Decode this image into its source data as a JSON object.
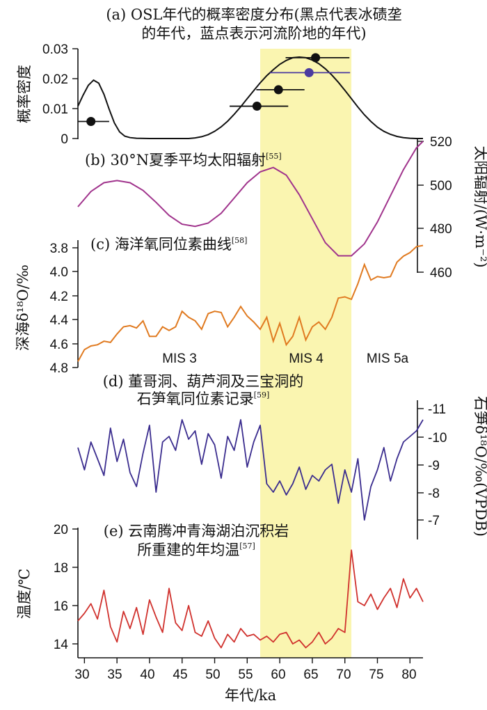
{
  "colors": {
    "highlight": "#FAF5B0",
    "density_curve": "#111111",
    "moraine_point": "#111111",
    "terrace_point": "#4B3BA0",
    "insolation": "#A0338C",
    "ocean": "#E07A20",
    "stalagmite": "#3A2C8E",
    "temperature": "#D0312D"
  },
  "chart_data": [
    {
      "id": "a",
      "type": "line",
      "title": "(a) OSL年代的概率密度分布(黑点代表冰碛垄",
      "title_line2": "的年代，蓝点表示河流阶地的年代)",
      "ylabel": "概率密度",
      "ylim": [
        0,
        0.03
      ],
      "yticks": [
        "0.03",
        "0.02",
        "0.01",
        "0"
      ],
      "xlim": [
        29,
        82
      ],
      "curve": {
        "x": [
          29,
          29.8,
          30.6,
          31.4,
          32.2,
          33,
          33.8,
          34.6,
          35.4,
          36.2,
          37,
          38,
          40,
          42,
          44,
          46,
          47,
          48,
          49,
          50,
          51,
          52,
          53,
          54,
          55,
          56,
          57,
          58,
          59,
          60,
          61,
          62,
          63,
          64,
          65,
          66,
          67,
          68,
          69,
          70,
          71,
          72,
          73,
          74,
          75,
          76,
          77,
          78,
          79,
          80,
          81,
          82
        ],
        "y": [
          0.0108,
          0.0145,
          0.0178,
          0.0195,
          0.0185,
          0.0148,
          0.0098,
          0.0052,
          0.0022,
          0.0008,
          0.0003,
          0.0001,
          0,
          0,
          0,
          0,
          0.0002,
          0.0006,
          0.0013,
          0.0024,
          0.0039,
          0.0058,
          0.0081,
          0.0106,
          0.0133,
          0.016,
          0.0186,
          0.021,
          0.023,
          0.0248,
          0.0261,
          0.027,
          0.0272,
          0.027,
          0.0262,
          0.025,
          0.0233,
          0.0212,
          0.0188,
          0.0161,
          0.0133,
          0.0105,
          0.0079,
          0.0057,
          0.0038,
          0.0024,
          0.0014,
          0.0007,
          0.0003,
          0.0001,
          0,
          0
        ]
      },
      "points": [
        {
          "x": 31,
          "y": 0.0057,
          "xerr_lo": 2.0,
          "xerr_hi": 2.8,
          "group": "moraine"
        },
        {
          "x": 56.5,
          "y": 0.0108,
          "xerr_lo": 4.2,
          "xerr_hi": 4.8,
          "group": "moraine"
        },
        {
          "x": 59.8,
          "y": 0.0163,
          "xerr_lo": 3.4,
          "xerr_hi": 4.0,
          "group": "moraine"
        },
        {
          "x": 65.5,
          "y": 0.027,
          "xerr_lo": 4.6,
          "xerr_hi": 5.2,
          "group": "moraine"
        },
        {
          "x": 64.5,
          "y": 0.022,
          "xerr_lo": 6.0,
          "xerr_hi": 6.3,
          "group": "terrace"
        }
      ]
    },
    {
      "id": "b",
      "type": "line",
      "title": "(b) 30°N夏季平均太阳辐射",
      "ref": "[55]",
      "ylabel": "太阳辐射/(W·m⁻²)",
      "ylim": [
        460,
        520
      ],
      "yticks": [
        "520",
        "500",
        "480",
        "460"
      ],
      "x": [
        29,
        31,
        33,
        35,
        37,
        39,
        41,
        43,
        45,
        47,
        49,
        51,
        53,
        55,
        57,
        59,
        61,
        63,
        65,
        67,
        69,
        71,
        73,
        75,
        77,
        79,
        81,
        82
      ],
      "y": [
        490,
        497,
        501,
        502,
        501,
        497.5,
        492,
        486,
        482,
        481,
        482.5,
        487,
        494,
        501,
        506,
        508,
        504.5,
        495.5,
        484.5,
        473.5,
        467.5,
        467.5,
        473,
        483,
        495,
        507,
        517,
        520
      ]
    },
    {
      "id": "c",
      "type": "line",
      "title": "(c) 海洋氧同位素曲线",
      "ref": "[58]",
      "ylabel": "深海δ¹⁸O/‰",
      "ylim": [
        4.8,
        3.7
      ],
      "yticks": [
        "3.8",
        "4.0",
        "4.2",
        "4.4",
        "4.6",
        "4.8"
      ],
      "stages": [
        "MIS 3",
        "MIS 4",
        "MIS 5a"
      ],
      "x": [
        29,
        30,
        31,
        32,
        33,
        34,
        35,
        36,
        37,
        38,
        39,
        40,
        41,
        42,
        43,
        44,
        45,
        46,
        47,
        48,
        49,
        50,
        51,
        52,
        53,
        54,
        55,
        56,
        57,
        58,
        59,
        60,
        61,
        62,
        63,
        64,
        65,
        66,
        67,
        68,
        69,
        70,
        71,
        72,
        73,
        74,
        75,
        76,
        77,
        78,
        79,
        80,
        81,
        82
      ],
      "y": [
        4.75,
        4.65,
        4.62,
        4.61,
        4.58,
        4.59,
        4.52,
        4.46,
        4.45,
        4.47,
        4.41,
        4.54,
        4.54,
        4.46,
        4.49,
        4.46,
        4.33,
        4.38,
        4.41,
        4.48,
        4.35,
        4.33,
        4.34,
        4.46,
        4.38,
        4.29,
        4.37,
        4.42,
        4.48,
        4.38,
        4.58,
        4.43,
        4.61,
        4.54,
        4.38,
        4.57,
        4.46,
        4.42,
        4.48,
        4.38,
        4.22,
        4.21,
        4.23,
        4.1,
        3.94,
        4.07,
        4.04,
        4.05,
        4.04,
        3.92,
        3.87,
        3.84,
        3.79,
        3.78
      ]
    },
    {
      "id": "d",
      "type": "line",
      "title": "(d) 董哥洞、葫芦洞及三宝洞的",
      "title_line2": "石笋氧同位素记录",
      "ref": "[59]",
      "ylabel": "石笋δ¹⁸O/‰(VPDB)",
      "ylim": [
        -6.5,
        -11.2
      ],
      "yticks": [
        "-11",
        "-10",
        "-9",
        "-8",
        "-7"
      ],
      "x": [
        29,
        30,
        31,
        32,
        33,
        34,
        35,
        36,
        37,
        38,
        39,
        40,
        41,
        42,
        43,
        44,
        45,
        46,
        47,
        48,
        49,
        50,
        51,
        52,
        53,
        54,
        55,
        56,
        57,
        58,
        59,
        60,
        61,
        62,
        63,
        64,
        65,
        66,
        67,
        68,
        69,
        70,
        71,
        72,
        73,
        74,
        75,
        76,
        77,
        78,
        79,
        80,
        81,
        82
      ],
      "y": [
        -9.6,
        -8.8,
        -9.8,
        -9.2,
        -8.6,
        -10.3,
        -9.1,
        -9.9,
        -8.7,
        -8.2,
        -9.4,
        -10.4,
        -8.0,
        -9.8,
        -10.0,
        -9.5,
        -10.6,
        -9.9,
        -10.2,
        -9.0,
        -10.1,
        -9.7,
        -8.5,
        -10.0,
        -9.5,
        -10.6,
        -8.9,
        -9.8,
        -10.4,
        -8.3,
        -8.0,
        -8.4,
        -7.9,
        -8.3,
        -8.9,
        -8.1,
        -8.6,
        -8.4,
        -8.8,
        -9.0,
        -7.6,
        -8.8,
        -8.0,
        -9.2,
        -7.0,
        -8.2,
        -8.8,
        -9.6,
        -8.4,
        -9.2,
        -9.8,
        -10.0,
        -10.2,
        -10.6
      ]
    },
    {
      "id": "e",
      "type": "line",
      "title": "(e) 云南腾冲青海湖泊沉积岩",
      "title_line2": "所重建的年均温",
      "ref": "[57]",
      "ylabel": "温度/℃",
      "ylim": [
        13.3,
        20
      ],
      "yticks": [
        "20",
        "18",
        "16",
        "14"
      ],
      "xlabel": "年代/ka",
      "xticks": [
        "30",
        "35",
        "40",
        "45",
        "50",
        "55",
        "60",
        "65",
        "70",
        "75",
        "80"
      ],
      "xlim": [
        29,
        82
      ],
      "highlight": [
        57,
        71
      ],
      "x": [
        29,
        30,
        31,
        32,
        33,
        34,
        35,
        36,
        37,
        38,
        39,
        40,
        41,
        42,
        43,
        44,
        45,
        46,
        47,
        48,
        49,
        50,
        51,
        52,
        53,
        54,
        55,
        56,
        57,
        58,
        59,
        60,
        61,
        62,
        63,
        64,
        65,
        66,
        67,
        68,
        69,
        70,
        71,
        72,
        73,
        74,
        75,
        76,
        77,
        78,
        79,
        80,
        81,
        82
      ],
      "y": [
        15.2,
        15.6,
        16.1,
        15.3,
        16.8,
        14.9,
        14.1,
        15.7,
        14.8,
        15.9,
        14.5,
        16.3,
        15.4,
        14.6,
        16.9,
        15.1,
        14.7,
        16.0,
        14.6,
        14.4,
        15.2,
        14.3,
        13.8,
        14.5,
        14.1,
        14.8,
        14.4,
        14.5,
        14.2,
        14.4,
        14.1,
        14.5,
        14.6,
        14.0,
        14.2,
        13.8,
        14.1,
        14.6,
        14.0,
        14.3,
        14.8,
        14.6,
        18.9,
        16.2,
        16.0,
        16.6,
        15.8,
        16.4,
        16.9,
        15.9,
        17.4,
        16.4,
        16.9,
        16.2
      ]
    }
  ]
}
